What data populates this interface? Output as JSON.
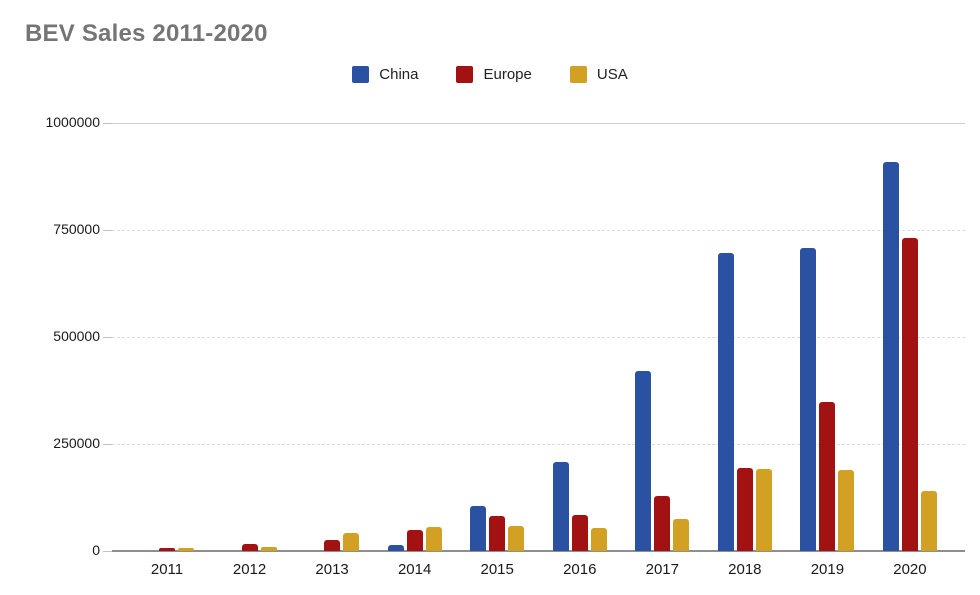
{
  "colors": {
    "title": "#757575",
    "axis_text": "#1a1a1a",
    "gridline": "#dcdcdc",
    "top_gridline": "#cfcfcf",
    "baseline": "#8e8e8e",
    "china": "#2b52a2",
    "europe": "#a31212",
    "usa": "#d2a023"
  },
  "chart_data": {
    "type": "bar",
    "title": "BEV Sales 2011-2020",
    "xlabel": "",
    "ylabel": "",
    "categories": [
      "2011",
      "2012",
      "2013",
      "2014",
      "2015",
      "2016",
      "2017",
      "2018",
      "2019",
      "2020"
    ],
    "series": [
      {
        "name": "China",
        "color": "#2b52a2",
        "values": [
          0,
          0,
          0,
          15000,
          105000,
          207000,
          420000,
          697000,
          708000,
          908000
        ]
      },
      {
        "name": "Europe",
        "color": "#a31212",
        "values": [
          8000,
          16000,
          25000,
          50000,
          83000,
          85000,
          129000,
          195000,
          349000,
          731000
        ]
      },
      {
        "name": "USA",
        "color": "#d2a023",
        "values": [
          6000,
          10000,
          43000,
          56000,
          58000,
          53000,
          75000,
          191000,
          190000,
          140000
        ]
      }
    ],
    "ylim": [
      0,
      1000000
    ],
    "yticks": [
      0,
      250000,
      500000,
      750000,
      1000000
    ],
    "ytick_labels": [
      "0",
      "250000",
      "500000",
      "750000",
      "1000000"
    ],
    "grid": true,
    "legend_position": "top",
    "legend_entries": [
      "China",
      "Europe",
      "USA"
    ]
  }
}
